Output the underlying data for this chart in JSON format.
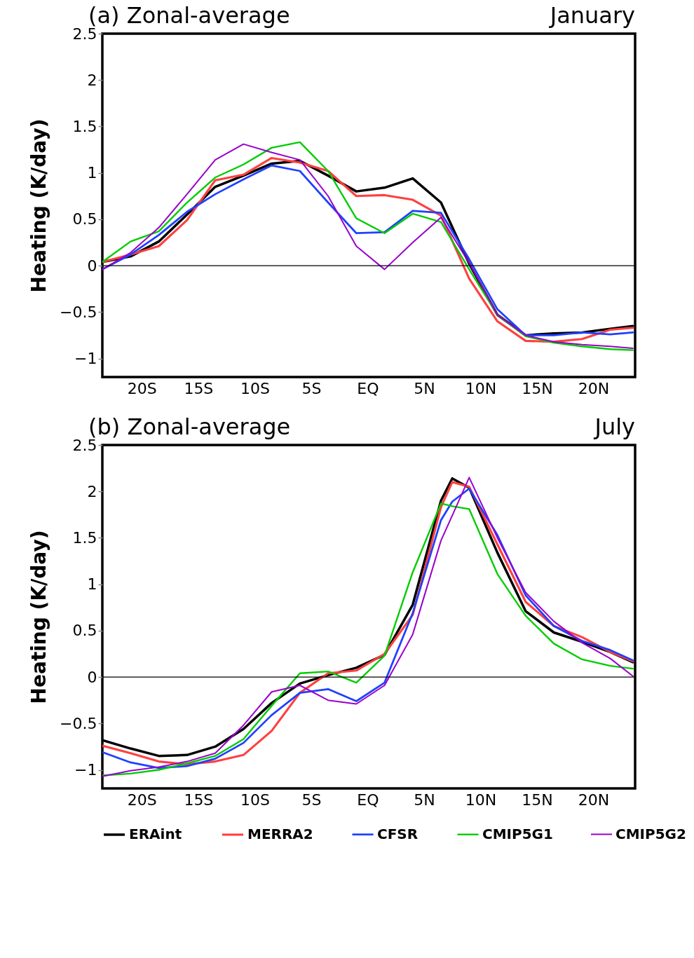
{
  "chart_data": [
    {
      "type": "line",
      "title": "(a)  Zonal-average",
      "annotations": [
        "January"
      ],
      "ylabel": "Heating (K/day)",
      "x": [
        -23.5,
        -21,
        -18.5,
        -16,
        -13.5,
        -11,
        -8.5,
        -6,
        -3.5,
        -1,
        1.5,
        4,
        6.5,
        9,
        11.5,
        14,
        16.5,
        19,
        21.5,
        23.5
      ],
      "series": [
        {
          "name": "ERAint",
          "color": "#000000",
          "values": [
            0.04,
            0.1,
            0.26,
            0.55,
            0.85,
            0.97,
            1.1,
            1.13,
            0.97,
            0.8,
            0.84,
            0.94,
            0.68,
            0.02,
            -0.53,
            -0.75,
            -0.73,
            -0.72,
            -0.68,
            -0.65
          ]
        },
        {
          "name": "MERRA2",
          "color": "#ff4040",
          "values": [
            0.04,
            0.12,
            0.21,
            0.49,
            0.92,
            0.98,
            1.16,
            1.11,
            1.02,
            0.75,
            0.76,
            0.71,
            0.54,
            -0.14,
            -0.6,
            -0.81,
            -0.82,
            -0.79,
            -0.69,
            -0.67
          ]
        },
        {
          "name": "CFSR",
          "color": "#2040ff",
          "values": [
            -0.04,
            0.12,
            0.33,
            0.58,
            0.77,
            0.93,
            1.08,
            1.02,
            0.68,
            0.35,
            0.36,
            0.59,
            0.57,
            0.07,
            -0.47,
            -0.75,
            -0.75,
            -0.72,
            -0.74,
            -0.72
          ]
        },
        {
          "name": "CMIP5G1",
          "color": "#00cc00",
          "values": [
            0.04,
            0.26,
            0.37,
            0.68,
            0.95,
            1.09,
            1.27,
            1.33,
            1.02,
            0.51,
            0.35,
            0.56,
            0.47,
            -0.04,
            -0.53,
            -0.76,
            -0.83,
            -0.87,
            -0.9,
            -0.91
          ]
        },
        {
          "name": "CMIP5G2",
          "color": "#9900cc",
          "values": [
            -0.04,
            0.14,
            0.41,
            0.77,
            1.14,
            1.31,
            1.22,
            1.14,
            0.75,
            0.21,
            -0.04,
            0.25,
            0.52,
            0.03,
            -0.53,
            -0.75,
            -0.82,
            -0.85,
            -0.87,
            -0.89
          ]
        }
      ],
      "xlim": [
        -23.5,
        23.7
      ],
      "xticks": [
        {
          "value": -20,
          "label": "20S"
        },
        {
          "value": -15,
          "label": "15S"
        },
        {
          "value": -10,
          "label": "10S"
        },
        {
          "value": -5,
          "label": "5S"
        },
        {
          "value": 0,
          "label": "EQ"
        },
        {
          "value": 5,
          "label": "5N"
        },
        {
          "value": 10,
          "label": "10N"
        },
        {
          "value": 15,
          "label": "15N"
        },
        {
          "value": 20,
          "label": "20N"
        }
      ],
      "ylim": [
        -1.2,
        2.5
      ],
      "yticks": [
        -1,
        -0.5,
        0,
        0.5,
        1,
        1.5,
        2,
        2.5
      ],
      "ref_lines": [
        {
          "axis": "y",
          "value": 0,
          "color": "#000000"
        }
      ],
      "legend": "bottom",
      "marker": "none",
      "line_style": "solid"
    },
    {
      "type": "line",
      "title": "(b)  Zonal-average",
      "annotations": [
        "July"
      ],
      "ylabel": "Heating (K/day)",
      "x": [
        -23.5,
        -21,
        -18.5,
        -16,
        -13.5,
        -11,
        -8.5,
        -6,
        -3.5,
        -1,
        1.5,
        4,
        6.5,
        7.5,
        9,
        11.5,
        14,
        16.5,
        19,
        21.5,
        23.5
      ],
      "series": [
        {
          "name": "ERAint",
          "color": "#000000",
          "values": [
            -0.68,
            -0.77,
            -0.85,
            -0.84,
            -0.75,
            -0.56,
            -0.28,
            -0.07,
            0.02,
            0.1,
            0.24,
            0.78,
            1.9,
            2.14,
            2.04,
            1.34,
            0.71,
            0.48,
            0.38,
            0.27,
            0.16
          ]
        },
        {
          "name": "MERRA2",
          "color": "#ff4040",
          "values": [
            -0.74,
            -0.82,
            -0.91,
            -0.94,
            -0.91,
            -0.84,
            -0.58,
            -0.17,
            0.04,
            0.07,
            0.25,
            0.67,
            1.83,
            2.1,
            2.05,
            1.43,
            0.81,
            0.55,
            0.43,
            0.27,
            0.17
          ]
        },
        {
          "name": "CFSR",
          "color": "#2040ff",
          "values": [
            -0.81,
            -0.92,
            -0.98,
            -0.96,
            -0.88,
            -0.71,
            -0.41,
            -0.17,
            -0.13,
            -0.26,
            -0.06,
            0.69,
            1.69,
            1.89,
            2.03,
            1.53,
            0.88,
            0.55,
            0.39,
            0.29,
            0.18
          ]
        },
        {
          "name": "CMIP5G1",
          "color": "#00cc00",
          "values": [
            -1.06,
            -1.04,
            -1.0,
            -0.93,
            -0.85,
            -0.67,
            -0.31,
            0.04,
            0.06,
            -0.06,
            0.23,
            1.13,
            1.87,
            1.84,
            1.81,
            1.11,
            0.66,
            0.36,
            0.19,
            0.12,
            0.09
          ]
        },
        {
          "name": "CMIP5G2",
          "color": "#9900cc",
          "values": [
            -1.07,
            -1.01,
            -0.97,
            -0.91,
            -0.82,
            -0.52,
            -0.16,
            -0.09,
            -0.25,
            -0.29,
            -0.09,
            0.46,
            1.47,
            1.74,
            2.15,
            1.5,
            0.91,
            0.6,
            0.37,
            0.2,
            0.01
          ]
        }
      ],
      "xlim": [
        -23.5,
        23.7
      ],
      "xticks": [
        {
          "value": -20,
          "label": "20S"
        },
        {
          "value": -15,
          "label": "15S"
        },
        {
          "value": -10,
          "label": "10S"
        },
        {
          "value": -5,
          "label": "5S"
        },
        {
          "value": 0,
          "label": "EQ"
        },
        {
          "value": 5,
          "label": "5N"
        },
        {
          "value": 10,
          "label": "10N"
        },
        {
          "value": 15,
          "label": "15N"
        },
        {
          "value": 20,
          "label": "20N"
        }
      ],
      "ylim": [
        -1.2,
        2.5
      ],
      "yticks": [
        -1,
        -0.5,
        0,
        0.5,
        1,
        1.5,
        2,
        2.5
      ],
      "ref_lines": [
        {
          "axis": "y",
          "value": 0,
          "color": "#000000"
        }
      ],
      "legend": "bottom",
      "marker": "none",
      "line_style": "solid"
    }
  ]
}
